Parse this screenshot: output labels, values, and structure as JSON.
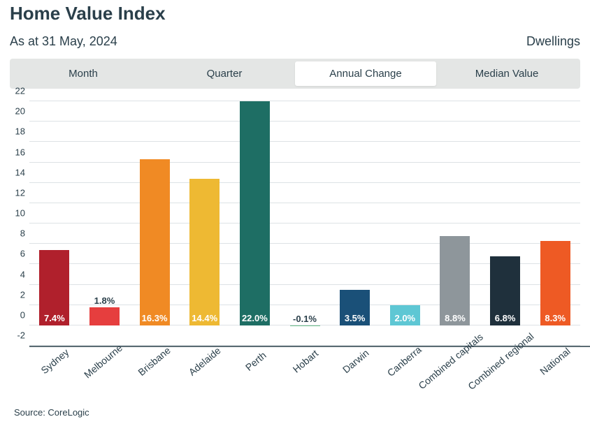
{
  "header": {
    "title": "Home Value Index",
    "date_line": "As at 31 May, 2024",
    "right_label": "Dwellings"
  },
  "tabs": [
    {
      "label": "Month",
      "active": false
    },
    {
      "label": "Quarter",
      "active": false
    },
    {
      "label": "Annual Change",
      "active": true
    },
    {
      "label": "Median Value",
      "active": false
    }
  ],
  "chart": {
    "type": "bar",
    "y_min": -2,
    "y_max": 22,
    "y_tick_step": 2,
    "y_ticks": [
      -2,
      0,
      2,
      4,
      6,
      8,
      10,
      12,
      14,
      16,
      18,
      20,
      22
    ],
    "grid_color": "#dde2e5",
    "axis_color": "#5a6b73",
    "background": "#ffffff",
    "label_inside_color": "#ffffff",
    "label_outside_color": "#2a3f4a",
    "label_fontsize": 13,
    "tick_fontsize": 13,
    "categories": [
      "Sydney",
      "Melbourne",
      "Brisbane",
      "Adelaide",
      "Perth",
      "Hobart",
      "Darwin",
      "Canberra",
      "Combined capitals",
      "Combined regional",
      "National"
    ],
    "series": [
      {
        "value": 7.4,
        "label": "7.4%",
        "color": "#b0202c",
        "label_placement": "inside"
      },
      {
        "value": 1.8,
        "label": "1.8%",
        "color": "#e63e3e",
        "label_placement": "above"
      },
      {
        "value": 16.3,
        "label": "16.3%",
        "color": "#f08a24",
        "label_placement": "inside"
      },
      {
        "value": 14.4,
        "label": "14.4%",
        "color": "#eeb933",
        "label_placement": "inside"
      },
      {
        "value": 22.0,
        "label": "22.0%",
        "color": "#1e6e64",
        "label_placement": "inside"
      },
      {
        "value": -0.1,
        "label": "-0.1%",
        "color": "#6cc08b",
        "label_placement": "above"
      },
      {
        "value": 3.5,
        "label": "3.5%",
        "color": "#1a5078",
        "label_placement": "inside"
      },
      {
        "value": 2.0,
        "label": "2.0%",
        "color": "#5ec7d4",
        "label_placement": "inside"
      },
      {
        "value": 8.8,
        "label": "8.8%",
        "color": "#8e969b",
        "label_placement": "inside"
      },
      {
        "value": 6.8,
        "label": "6.8%",
        "color": "#1f303c",
        "label_placement": "inside"
      },
      {
        "value": 8.3,
        "label": "8.3%",
        "color": "#ee5a24",
        "label_placement": "inside"
      }
    ]
  },
  "footer": {
    "source": "Source: CoreLogic"
  }
}
